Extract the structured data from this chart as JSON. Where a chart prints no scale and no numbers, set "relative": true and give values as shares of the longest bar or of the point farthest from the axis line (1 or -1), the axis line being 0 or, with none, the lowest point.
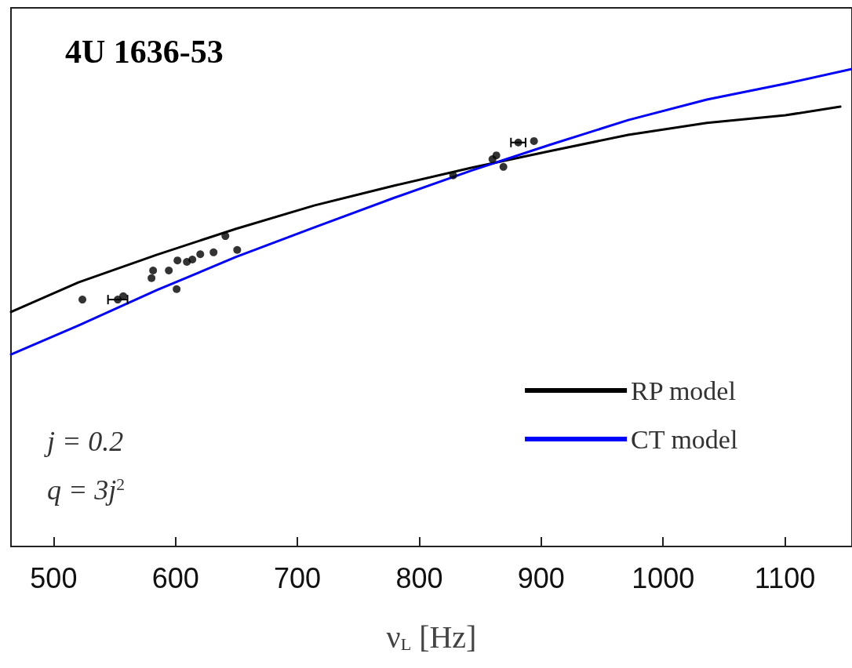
{
  "chart_data": {
    "type": "line",
    "title": "4U 1636-53",
    "xlabel": "ν$_{L}$ [Hz]",
    "relative": true,
    "annotations": [
      "j = 0.2",
      "q = 3j$^{2}$"
    ],
    "xlim": [
      465,
      1155
    ],
    "xticks": [
      500,
      600,
      700,
      800,
      900,
      1000,
      1100
    ],
    "tick_labels": "x",
    "grid": false,
    "legend": "bottom right",
    "marker": "none",
    "line_style": "solid",
    "series": [
      {
        "name": "RP model",
        "color": "#000000",
        "x": [
          465,
          520.4,
          584.8,
          649.3,
          713.7,
          778.1,
          842.6,
          907,
          971.4,
          1035.9,
          1100.3,
          1145.4
        ],
        "values": [
          0.491,
          0.553,
          0.611,
          0.665,
          0.714,
          0.755,
          0.793,
          0.828,
          0.862,
          0.887,
          0.903,
          0.921
        ]
      },
      {
        "name": "CT model",
        "color": "#0000ff",
        "x": [
          465,
          520.4,
          584.8,
          649.3,
          713.7,
          778.1,
          842.6,
          907,
          971.4,
          1035.9,
          1100.3,
          1155
        ],
        "values": [
          0.402,
          0.463,
          0.537,
          0.606,
          0.668,
          0.729,
          0.787,
          0.841,
          0.893,
          0.936,
          0.969,
          1
        ]
      },
      {
        "type": "scatter",
        "marker": "circle",
        "color": "#000000",
        "x": [
          523.6,
          552.6,
          557.1,
          580.3,
          581.6,
          594.5,
          600.9,
          601.6,
          609.3,
          613.8,
          620.3,
          631.2,
          640.9,
          650.6,
          827.8,
          860.0,
          863.2,
          869.0,
          881.2,
          894.1
        ],
        "values": [
          0.517,
          0.517,
          0.524,
          0.562,
          0.578,
          0.578,
          0.539,
          0.599,
          0.596,
          0.601,
          0.612,
          0.616,
          0.65,
          0.621,
          0.777,
          0.811,
          0.819,
          0.795,
          0.846,
          0.849
        ],
        "xerrors": [
          null,
          8,
          null,
          null,
          null,
          null,
          null,
          null,
          null,
          null,
          null,
          null,
          null,
          null,
          null,
          null,
          null,
          null,
          6,
          null
        ]
      }
    ]
  }
}
